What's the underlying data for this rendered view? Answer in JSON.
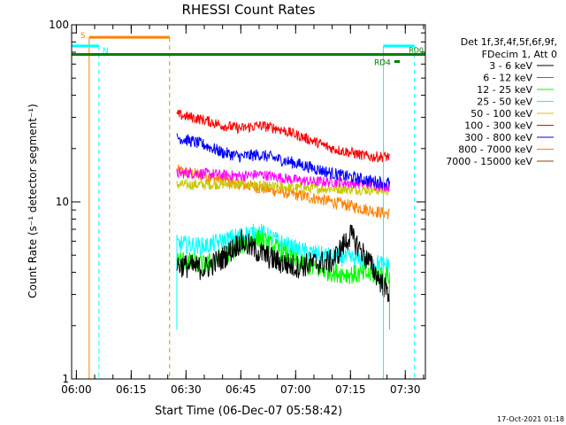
{
  "chart_data": {
    "type": "line",
    "title": "RHESSI Count Rates",
    "xlabel": "Start Time (06-Dec-07 05:58:42)",
    "ylabel": "Count Rate (s⁻¹ detector segment⁻¹)",
    "y_scale": "log",
    "xlim": [
      "05:58:42",
      "07:35:30"
    ],
    "ylim": [
      1,
      100
    ],
    "x_ticks": [
      "06:00",
      "06:15",
      "06:30",
      "06:45",
      "07:00",
      "07:15",
      "07:30"
    ],
    "y_ticks": [
      "1",
      "10",
      "100"
    ],
    "legend_header": [
      "Det 1f,3f,4f,5f,6f,9f,",
      "FDecim 1, Att 0"
    ],
    "legend_position": "right",
    "footer_timestamp": "17-Oct-2021 01:18",
    "series": [
      {
        "name": "3 - 6 keV",
        "color": "#000000",
        "data_start": "06:27:30",
        "data_end": "07:25:40",
        "values_at": [
          "06:28",
          "06:35",
          "06:40",
          "06:45",
          "06:50",
          "06:55",
          "07:00",
          "07:05",
          "07:10",
          "07:15",
          "07:20",
          "07:25"
        ],
        "values": [
          4.4,
          4.2,
          4.8,
          6.0,
          5.2,
          4.6,
          4.3,
          4.5,
          4.6,
          6.5,
          4.6,
          3.1
        ]
      },
      {
        "name": "6 - 12 keV",
        "color": "#ff00ff",
        "data_start": "06:27:30",
        "data_end": "07:25:40",
        "values_at": [
          "06:28",
          "06:35",
          "06:40",
          "06:45",
          "06:50",
          "06:55",
          "07:00",
          "07:05",
          "07:10",
          "07:15",
          "07:20",
          "07:25"
        ],
        "values": [
          14.5,
          14.5,
          14.2,
          14.0,
          14.3,
          13.8,
          13.3,
          13.0,
          13.0,
          12.8,
          12.6,
          12.3
        ]
      },
      {
        "name": "12 - 25 keV",
        "color": "#00ff00",
        "data_start": "06:27:30",
        "data_end": "07:25:40",
        "values_at": [
          "06:28",
          "06:35",
          "06:40",
          "06:45",
          "06:50",
          "06:55",
          "07:00",
          "07:05",
          "07:10",
          "07:15",
          "07:20",
          "07:25"
        ],
        "values": [
          4.7,
          4.4,
          4.9,
          5.7,
          6.2,
          5.4,
          4.6,
          4.2,
          4.0,
          3.9,
          3.9,
          3.8
        ]
      },
      {
        "name": "25 - 50 keV",
        "color": "#00ffff",
        "data_start": "06:27:30",
        "data_end": "07:25:40",
        "values_at": [
          "06:28",
          "06:35",
          "06:40",
          "06:45",
          "06:50",
          "06:55",
          "07:00",
          "07:05",
          "07:10",
          "07:15",
          "07:20",
          "07:25"
        ],
        "values": [
          5.8,
          5.6,
          6.0,
          6.5,
          6.8,
          6.0,
          5.4,
          5.1,
          4.9,
          4.8,
          4.6,
          4.4
        ]
      },
      {
        "name": "50 - 100 keV",
        "color": "#c8c800",
        "data_start": "06:27:30",
        "data_end": "07:25:40",
        "values_at": [
          "06:28",
          "06:35",
          "06:40",
          "06:45",
          "06:50",
          "06:55",
          "07:00",
          "07:05",
          "07:10",
          "07:15",
          "07:20",
          "07:25"
        ],
        "values": [
          12.5,
          12.5,
          12.6,
          12.5,
          12.3,
          12.1,
          12.0,
          11.9,
          11.9,
          11.8,
          11.7,
          11.6
        ]
      },
      {
        "name": "100 - 300 keV",
        "color": "#ff0000",
        "data_start": "06:27:30",
        "data_end": "07:25:40",
        "values_at": [
          "06:28",
          "06:35",
          "06:40",
          "06:45",
          "06:50",
          "06:55",
          "07:00",
          "07:05",
          "07:10",
          "07:15",
          "07:20",
          "07:25"
        ],
        "values": [
          31,
          29,
          27,
          26,
          27,
          26,
          24,
          22,
          20,
          19,
          18,
          18
        ]
      },
      {
        "name": "300 - 800 keV",
        "color": "#0000ff",
        "data_start": "06:27:30",
        "data_end": "07:25:40",
        "values_at": [
          "06:28",
          "06:35",
          "06:40",
          "06:45",
          "06:50",
          "06:55",
          "07:00",
          "07:05",
          "07:10",
          "07:15",
          "07:20",
          "07:25"
        ],
        "values": [
          23,
          21,
          19,
          18,
          18.5,
          17.5,
          16.5,
          15.5,
          14.5,
          13.8,
          13.2,
          12.8
        ]
      },
      {
        "name": "800 - 7000 keV",
        "color": "#ff8000",
        "data_start": "06:27:30",
        "data_end": "07:25:40",
        "values_at": [
          "06:28",
          "06:35",
          "06:40",
          "06:45",
          "06:50",
          "06:55",
          "07:00",
          "07:05",
          "07:10",
          "07:15",
          "07:20",
          "07:25"
        ],
        "values": [
          15.0,
          14.0,
          13.3,
          12.6,
          12.0,
          11.5,
          11.0,
          10.5,
          10.0,
          9.5,
          9.0,
          8.6
        ]
      },
      {
        "name": "7000 - 15000 keV",
        "color": "#8b4513",
        "data_start": "",
        "data_end": "",
        "values_at": [],
        "values": []
      }
    ],
    "event_markers": [
      {
        "label": "S",
        "color": "#ff8000",
        "start": "06:03:30",
        "end": "06:25:30",
        "start_style": "solid",
        "end_style": "dashed",
        "bar_level": 85
      },
      {
        "label": "N",
        "color": "#00ffff",
        "start": "05:58:42",
        "end": "06:06:10",
        "start_style": "solid",
        "end_style": "dashed",
        "bar_level": 76
      },
      {
        "label": "N",
        "color": "#00ffff",
        "start": "07:24:00",
        "end": "07:32:30",
        "start_style": "solid",
        "end_style": "dashed",
        "bar_level": 76
      },
      {
        "label": "RD4",
        "color": "#008000",
        "start": "05:58:42",
        "end": "07:35:30",
        "bar_level": 68,
        "extra_segment": {
          "start": "07:27:00",
          "end": "07:28:30",
          "bar_level": 62
        }
      },
      {
        "label": "RD0",
        "color": "#008000",
        "start": "07:27:30",
        "end": "07:35:30",
        "bar_level": 72
      }
    ]
  }
}
